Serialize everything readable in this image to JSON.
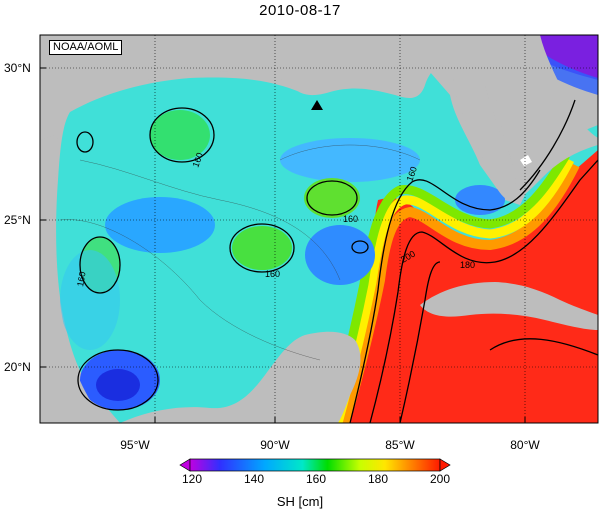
{
  "title": "2010-08-17",
  "credit": "NOAA/AOML",
  "lat_labels": [
    "30°N",
    "25°N",
    "20°N"
  ],
  "lon_labels": [
    "95°W",
    "90°W",
    "85°W",
    "80°W"
  ],
  "contour_labels": [
    "160",
    "160",
    "160",
    "160",
    "160",
    "180",
    "200"
  ],
  "colorbar": {
    "ticks": [
      "120",
      "140",
      "160",
      "180",
      "200"
    ],
    "label": "SH [cm]",
    "colors": [
      "#8a00d6",
      "#2a2aff",
      "#00aaff",
      "#00e6c8",
      "#00e000",
      "#b4ff00",
      "#ffee00",
      "#ff9900",
      "#ff2200"
    ]
  },
  "colors": {
    "land": "#bfbfbf",
    "gulf_base": "#3fe0d8",
    "warm": "#ff2b1a"
  },
  "marker": "triangle-marker"
}
